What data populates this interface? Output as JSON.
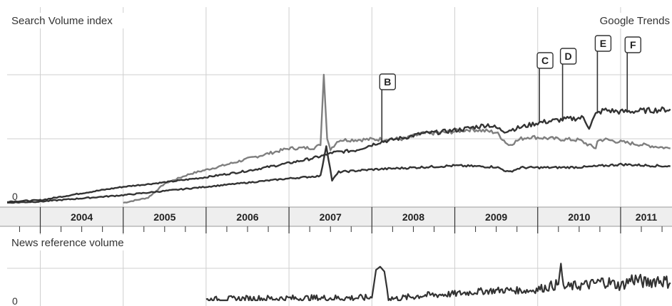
{
  "chart_data": [
    {
      "type": "line",
      "title": "Search Volume index",
      "attribution": "Google Trends",
      "zero_label": "0",
      "xlim": [
        2003.6,
        2011.62
      ],
      "ylim": [
        0,
        2.0
      ],
      "grid": true,
      "years": [
        "2004",
        "2005",
        "2006",
        "2007",
        "2008",
        "2009",
        "2010",
        "2011"
      ],
      "colors": {
        "dark": "#333333",
        "gray": "#808080",
        "grid": "#cfcfcf",
        "band": "#eeeeee"
      },
      "series": [
        {
          "color": "#7f7f7f",
          "x": [
            2005.0,
            2005.3,
            2005.5,
            2005.8,
            2006.2,
            2006.6,
            2007.0,
            2007.3,
            2007.38,
            2007.42,
            2007.46,
            2007.5,
            2007.6,
            2008.0,
            2008.4,
            2008.6,
            2008.9,
            2009.2,
            2009.5,
            2009.65,
            2009.8,
            2009.9,
            2010.2,
            2010.5,
            2010.7,
            2010.72,
            2010.8,
            2011.0,
            2011.3,
            2011.6
          ],
          "y": [
            0.0,
            0.08,
            0.3,
            0.45,
            0.58,
            0.72,
            0.85,
            0.86,
            0.9,
            2.0,
            1.0,
            0.84,
            0.98,
            0.99,
            1.0,
            1.08,
            1.1,
            1.15,
            1.1,
            0.9,
            1.0,
            1.03,
            1.0,
            0.98,
            0.85,
            0.97,
            0.99,
            0.95,
            0.9,
            0.85
          ]
        },
        {
          "color": "#333333",
          "x": [
            2003.6,
            2004.0,
            2004.5,
            2005.0,
            2005.5,
            2006.0,
            2006.5,
            2007.0,
            2007.3,
            2007.45,
            2007.5,
            2007.8,
            2008.1,
            2008.4,
            2008.6,
            2008.8,
            2009.1,
            2009.4,
            2009.6,
            2009.8,
            2010.0,
            2010.3,
            2010.55,
            2010.62,
            2010.7,
            2010.8,
            2011.0,
            2011.3,
            2011.6
          ],
          "y": [
            0.02,
            0.04,
            0.15,
            0.25,
            0.32,
            0.4,
            0.5,
            0.62,
            0.7,
            0.75,
            0.78,
            0.82,
            0.95,
            1.02,
            1.08,
            1.1,
            1.15,
            1.22,
            1.12,
            1.18,
            1.25,
            1.3,
            1.33,
            1.18,
            1.38,
            1.45,
            1.42,
            1.44,
            1.46
          ]
        },
        {
          "color": "#333333",
          "x": [
            2003.6,
            2004.0,
            2005.0,
            2006.0,
            2007.0,
            2007.38,
            2007.45,
            2007.52,
            2007.6,
            2008.0,
            2008.5,
            2009.0,
            2009.5,
            2009.65,
            2009.8,
            2010.2,
            2010.6,
            2011.0,
            2011.6
          ],
          "y": [
            0.0,
            0.02,
            0.12,
            0.25,
            0.38,
            0.42,
            0.9,
            0.35,
            0.48,
            0.52,
            0.55,
            0.58,
            0.56,
            0.48,
            0.55,
            0.55,
            0.56,
            0.6,
            0.57
          ]
        }
      ],
      "annotations": [
        {
          "label": "B",
          "x": 2008.12
        },
        {
          "label": "C",
          "x": 2010.02
        },
        {
          "label": "D",
          "x": 2010.3
        },
        {
          "label": "E",
          "x": 2010.72
        },
        {
          "label": "F",
          "x": 2011.08
        }
      ]
    },
    {
      "type": "line",
      "title": "News reference volume",
      "zero_label": "0",
      "xlim": [
        2003.6,
        2011.62
      ],
      "ylim": [
        0,
        1.0
      ],
      "grid": true,
      "series": [
        {
          "color": "#333333",
          "x": [
            2006.0,
            2006.5,
            2007.0,
            2007.5,
            2008.0,
            2008.05,
            2008.1,
            2008.15,
            2008.2,
            2008.3,
            2008.6,
            2009.0,
            2009.3,
            2009.6,
            2009.9,
            2010.0,
            2010.25,
            2010.28,
            2010.31,
            2010.45,
            2010.65,
            2010.8,
            2011.0,
            2011.15,
            2011.3,
            2011.45,
            2011.6
          ],
          "y": [
            0.01,
            0.05,
            0.06,
            0.07,
            0.08,
            0.95,
            1.05,
            0.9,
            0.08,
            0.05,
            0.15,
            0.2,
            0.28,
            0.32,
            0.3,
            0.35,
            0.5,
            1.15,
            0.4,
            0.45,
            0.5,
            0.6,
            0.45,
            0.68,
            0.55,
            0.65,
            0.55
          ]
        }
      ]
    }
  ]
}
